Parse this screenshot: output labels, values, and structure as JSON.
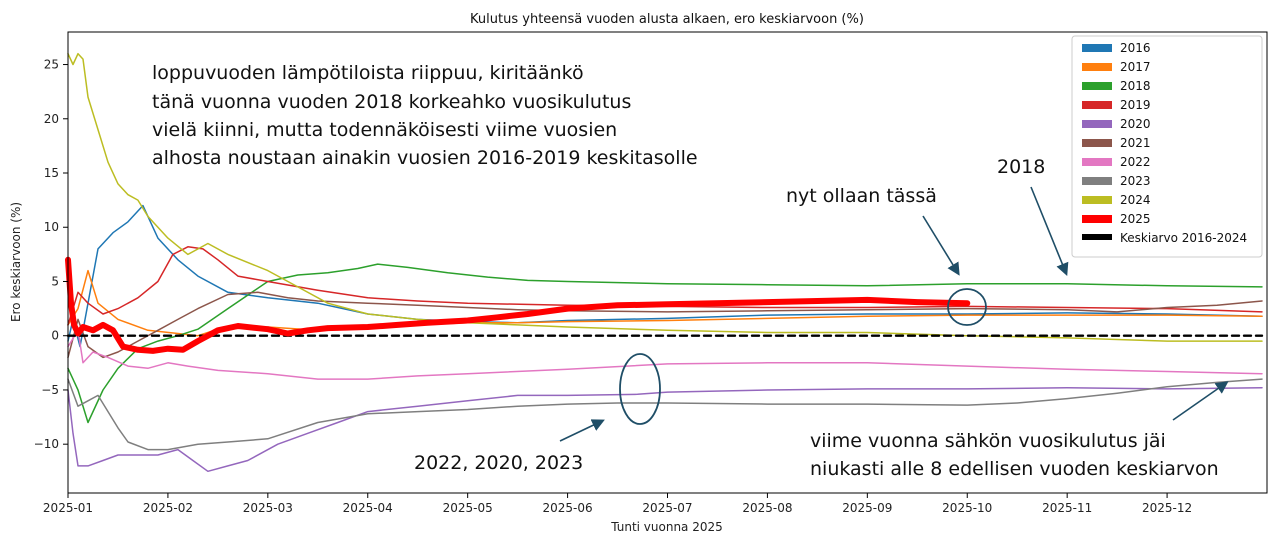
{
  "chart_data": {
    "type": "line",
    "title": "Kulutus yhteensä vuoden alusta alkaen, ero keskiarvoon (%)",
    "xlabel": "Tunti vuonna 2025",
    "ylabel": "Ero keskiarvoon (%)",
    "x_unit": "month (1 = 2025-01, 13 = 2026-01)",
    "xlim": [
      1,
      13
    ],
    "ylim": [
      -14.5,
      28
    ],
    "x_ticks": [
      {
        "v": 1,
        "label": "2025-01"
      },
      {
        "v": 2,
        "label": "2025-02"
      },
      {
        "v": 3,
        "label": "2025-03"
      },
      {
        "v": 4,
        "label": "2025-04"
      },
      {
        "v": 5,
        "label": "2025-05"
      },
      {
        "v": 6,
        "label": "2025-06"
      },
      {
        "v": 7,
        "label": "2025-07"
      },
      {
        "v": 8,
        "label": "2025-08"
      },
      {
        "v": 9,
        "label": "2025-09"
      },
      {
        "v": 10,
        "label": "2025-10"
      },
      {
        "v": 11,
        "label": "2025-11"
      },
      {
        "v": 12,
        "label": "2025-12"
      }
    ],
    "y_ticks": [
      {
        "v": 25,
        "label": "25"
      },
      {
        "v": 20,
        "label": "20"
      },
      {
        "v": 15,
        "label": "15"
      },
      {
        "v": 10,
        "label": "10"
      },
      {
        "v": 5,
        "label": "5"
      },
      {
        "v": 0,
        "label": "0"
      },
      {
        "v": -5,
        "label": "−5"
      },
      {
        "v": -10,
        "label": "−10"
      }
    ],
    "series": [
      {
        "name": "2016",
        "color": "#1f77b4",
        "points": [
          [
            1,
            -0.5
          ],
          [
            1.05,
            1.5
          ],
          [
            1.12,
            -1
          ],
          [
            1.2,
            3
          ],
          [
            1.3,
            8
          ],
          [
            1.45,
            9.5
          ],
          [
            1.6,
            10.5
          ],
          [
            1.75,
            12
          ],
          [
            1.9,
            9
          ],
          [
            2.1,
            7
          ],
          [
            2.3,
            5.5
          ],
          [
            2.6,
            4
          ],
          [
            3,
            3.5
          ],
          [
            3.5,
            3
          ],
          [
            4,
            2
          ],
          [
            4.5,
            1.5
          ],
          [
            5,
            1.3
          ],
          [
            5.5,
            1.2
          ],
          [
            6,
            1.4
          ],
          [
            7,
            1.6
          ],
          [
            8,
            1.9
          ],
          [
            9,
            2
          ],
          [
            10,
            2
          ],
          [
            11,
            2.1
          ],
          [
            12,
            2
          ],
          [
            12.95,
            1.8
          ]
        ]
      },
      {
        "name": "2017",
        "color": "#ff7f0e",
        "points": [
          [
            1,
            1
          ],
          [
            1.1,
            2.5
          ],
          [
            1.2,
            6
          ],
          [
            1.3,
            3
          ],
          [
            1.5,
            1.5
          ],
          [
            1.8,
            0.5
          ],
          [
            2.1,
            0.2
          ],
          [
            2.3,
            0
          ],
          [
            2.5,
            0.6
          ],
          [
            3,
            0.8
          ],
          [
            3.5,
            0.5
          ],
          [
            4,
            0.8
          ],
          [
            4.5,
            1
          ],
          [
            5,
            1.2
          ],
          [
            5.5,
            1.2
          ],
          [
            6,
            1.3
          ],
          [
            7,
            1.4
          ],
          [
            8,
            1.6
          ],
          [
            9,
            1.8
          ],
          [
            10,
            1.9
          ],
          [
            11,
            1.9
          ],
          [
            12,
            1.9
          ],
          [
            12.95,
            1.8
          ]
        ]
      },
      {
        "name": "2018",
        "color": "#2ca02c",
        "points": [
          [
            1,
            -3
          ],
          [
            1.1,
            -5
          ],
          [
            1.2,
            -8
          ],
          [
            1.35,
            -5
          ],
          [
            1.5,
            -3
          ],
          [
            1.7,
            -1.2
          ],
          [
            1.9,
            -0.5
          ],
          [
            2.1,
            0
          ],
          [
            2.3,
            0.6
          ],
          [
            2.6,
            2.5
          ],
          [
            3,
            5
          ],
          [
            3.3,
            5.6
          ],
          [
            3.6,
            5.8
          ],
          [
            3.9,
            6.2
          ],
          [
            4.1,
            6.6
          ],
          [
            4.4,
            6.3
          ],
          [
            4.8,
            5.8
          ],
          [
            5.2,
            5.4
          ],
          [
            5.6,
            5.1
          ],
          [
            6,
            5
          ],
          [
            7,
            4.8
          ],
          [
            8,
            4.7
          ],
          [
            9,
            4.6
          ],
          [
            10,
            4.8
          ],
          [
            11,
            4.8
          ],
          [
            12,
            4.6
          ],
          [
            12.95,
            4.5
          ]
        ]
      },
      {
        "name": "2019",
        "color": "#d62728",
        "points": [
          [
            1,
            1
          ],
          [
            1.1,
            4
          ],
          [
            1.2,
            3
          ],
          [
            1.35,
            2
          ],
          [
            1.5,
            2.5
          ],
          [
            1.7,
            3.5
          ],
          [
            1.9,
            5
          ],
          [
            2.05,
            7.5
          ],
          [
            2.2,
            8.2
          ],
          [
            2.35,
            8
          ],
          [
            2.5,
            7
          ],
          [
            2.7,
            5.5
          ],
          [
            3,
            5
          ],
          [
            3.5,
            4.2
          ],
          [
            4,
            3.5
          ],
          [
            4.5,
            3.2
          ],
          [
            5,
            3
          ],
          [
            6,
            2.8
          ],
          [
            7,
            2.7
          ],
          [
            8,
            2.6
          ],
          [
            9,
            2.6
          ],
          [
            10,
            2.7
          ],
          [
            11,
            2.6
          ],
          [
            12,
            2.5
          ],
          [
            12.95,
            2.2
          ]
        ]
      },
      {
        "name": "2020",
        "color": "#9467bd",
        "points": [
          [
            1,
            -5
          ],
          [
            1.05,
            -9
          ],
          [
            1.1,
            -12
          ],
          [
            1.2,
            -12
          ],
          [
            1.35,
            -11.5
          ],
          [
            1.5,
            -11
          ],
          [
            1.7,
            -11
          ],
          [
            1.9,
            -11
          ],
          [
            2.1,
            -10.5
          ],
          [
            2.25,
            -11.5
          ],
          [
            2.4,
            -12.5
          ],
          [
            2.6,
            -12
          ],
          [
            2.8,
            -11.5
          ],
          [
            3.1,
            -10
          ],
          [
            3.4,
            -9
          ],
          [
            3.7,
            -8
          ],
          [
            4,
            -7
          ],
          [
            4.5,
            -6.5
          ],
          [
            5,
            -6
          ],
          [
            5.5,
            -5.5
          ],
          [
            6,
            -5.5
          ],
          [
            6.7,
            -5.4
          ],
          [
            7,
            -5.2
          ],
          [
            8,
            -5
          ],
          [
            9,
            -4.9
          ],
          [
            10,
            -4.9
          ],
          [
            11,
            -4.8
          ],
          [
            12,
            -4.9
          ],
          [
            12.95,
            -4.8
          ]
        ]
      },
      {
        "name": "2021",
        "color": "#8c564b",
        "points": [
          [
            1,
            -2
          ],
          [
            1.1,
            1.5
          ],
          [
            1.2,
            -1
          ],
          [
            1.35,
            -2
          ],
          [
            1.5,
            -1.5
          ],
          [
            1.7,
            -0.5
          ],
          [
            1.9,
            0.5
          ],
          [
            2.1,
            1.5
          ],
          [
            2.3,
            2.5
          ],
          [
            2.6,
            3.8
          ],
          [
            2.9,
            4
          ],
          [
            3.2,
            3.5
          ],
          [
            3.5,
            3.2
          ],
          [
            4,
            3
          ],
          [
            4.5,
            2.8
          ],
          [
            5,
            2.6
          ],
          [
            5.5,
            2.4
          ],
          [
            6,
            2.3
          ],
          [
            7,
            2.2
          ],
          [
            8,
            2.3
          ],
          [
            9,
            2.4
          ],
          [
            10,
            2.5
          ],
          [
            11,
            2.4
          ],
          [
            11.5,
            2.2
          ],
          [
            12,
            2.6
          ],
          [
            12.5,
            2.8
          ],
          [
            12.95,
            3.2
          ]
        ]
      },
      {
        "name": "2022",
        "color": "#e377c2",
        "points": [
          [
            1,
            -1
          ],
          [
            1.1,
            0.5
          ],
          [
            1.15,
            -2.5
          ],
          [
            1.25,
            -1.5
          ],
          [
            1.4,
            -2
          ],
          [
            1.6,
            -2.8
          ],
          [
            1.8,
            -3
          ],
          [
            2,
            -2.5
          ],
          [
            2.2,
            -2.8
          ],
          [
            2.5,
            -3.2
          ],
          [
            3,
            -3.5
          ],
          [
            3.5,
            -4
          ],
          [
            4,
            -4
          ],
          [
            4.5,
            -3.7
          ],
          [
            5,
            -3.5
          ],
          [
            6,
            -3.1
          ],
          [
            7,
            -2.6
          ],
          [
            8,
            -2.5
          ],
          [
            9,
            -2.5
          ],
          [
            10,
            -2.8
          ],
          [
            11,
            -3.1
          ],
          [
            12,
            -3.3
          ],
          [
            12.95,
            -3.5
          ]
        ]
      },
      {
        "name": "2023",
        "color": "#7f7f7f",
        "points": [
          [
            1,
            -4
          ],
          [
            1.1,
            -6.5
          ],
          [
            1.2,
            -6
          ],
          [
            1.3,
            -5.5
          ],
          [
            1.4,
            -7
          ],
          [
            1.5,
            -8.5
          ],
          [
            1.6,
            -9.8
          ],
          [
            1.8,
            -10.5
          ],
          [
            2,
            -10.5
          ],
          [
            2.3,
            -10
          ],
          [
            2.6,
            -9.8
          ],
          [
            3,
            -9.5
          ],
          [
            3.5,
            -8
          ],
          [
            4,
            -7.2
          ],
          [
            4.5,
            -7
          ],
          [
            5,
            -6.8
          ],
          [
            5.5,
            -6.5
          ],
          [
            6,
            -6.3
          ],
          [
            6.5,
            -6.2
          ],
          [
            7,
            -6.2
          ],
          [
            8,
            -6.3
          ],
          [
            9,
            -6.3
          ],
          [
            10,
            -6.4
          ],
          [
            10.5,
            -6.2
          ],
          [
            11,
            -5.8
          ],
          [
            11.5,
            -5.3
          ],
          [
            12,
            -4.7
          ],
          [
            12.5,
            -4.3
          ],
          [
            12.95,
            -4
          ]
        ]
      },
      {
        "name": "2024",
        "color": "#bcbd22",
        "points": [
          [
            1,
            26
          ],
          [
            1.05,
            25
          ],
          [
            1.1,
            26
          ],
          [
            1.15,
            25.5
          ],
          [
            1.2,
            22
          ],
          [
            1.3,
            19
          ],
          [
            1.4,
            16
          ],
          [
            1.5,
            14
          ],
          [
            1.6,
            13
          ],
          [
            1.7,
            12.5
          ],
          [
            1.8,
            11
          ],
          [
            2,
            9
          ],
          [
            2.2,
            7.5
          ],
          [
            2.4,
            8.5
          ],
          [
            2.6,
            7.5
          ],
          [
            3,
            6
          ],
          [
            3.3,
            4.5
          ],
          [
            3.6,
            3
          ],
          [
            4,
            2
          ],
          [
            4.5,
            1.5
          ],
          [
            5,
            1.2
          ],
          [
            5.5,
            1
          ],
          [
            6,
            0.8
          ],
          [
            7,
            0.5
          ],
          [
            8,
            0.3
          ],
          [
            9,
            0.3
          ],
          [
            10,
            0
          ],
          [
            11,
            -0.2
          ],
          [
            12,
            -0.5
          ],
          [
            12.95,
            -0.5
          ]
        ]
      },
      {
        "name": "2025",
        "color": "#ff0000",
        "points": [
          [
            1,
            7
          ],
          [
            1.03,
            3
          ],
          [
            1.06,
            1
          ],
          [
            1.1,
            0.2
          ],
          [
            1.15,
            0.8
          ],
          [
            1.25,
            0.5
          ],
          [
            1.35,
            1
          ],
          [
            1.45,
            0.5
          ],
          [
            1.55,
            -1
          ],
          [
            1.7,
            -1.3
          ],
          [
            1.85,
            -1.4
          ],
          [
            2,
            -1.2
          ],
          [
            2.15,
            -1.3
          ],
          [
            2.3,
            -0.5
          ],
          [
            2.5,
            0.5
          ],
          [
            2.7,
            0.9
          ],
          [
            3,
            0.6
          ],
          [
            3.2,
            0.2
          ],
          [
            3.4,
            0.5
          ],
          [
            3.6,
            0.7
          ],
          [
            4,
            0.8
          ],
          [
            4.3,
            1
          ],
          [
            4.6,
            1.2
          ],
          [
            5,
            1.4
          ],
          [
            5.3,
            1.7
          ],
          [
            5.6,
            2
          ],
          [
            6,
            2.5
          ],
          [
            6.5,
            2.8
          ],
          [
            7,
            2.9
          ],
          [
            8,
            3.1
          ],
          [
            8.5,
            3.2
          ],
          [
            9,
            3.3
          ],
          [
            9.5,
            3.1
          ],
          [
            10,
            3
          ]
        ]
      },
      {
        "name": "Keskiarvo 2016-2024",
        "color": "#000000",
        "points": [
          [
            1,
            0
          ],
          [
            12.95,
            0
          ]
        ]
      }
    ],
    "annotations": {
      "top_text": [
        "loppuvuoden lämpötiloista riippuu, kiritäänkö",
        "tänä vuonna vuoden 2018 korkeahko vuosikulutus",
        "vielä kiinni, mutta todennäköisesti viime vuosien",
        "alhosta noustaan ainakin vuosien 2016-2019 keskitasolle"
      ],
      "now_label": "nyt ollaan tässä",
      "label_2018": "2018",
      "label_lower_group": "2022, 2020, 2023",
      "bottom_right_text": [
        "viime vuonna sähkön vuosikulutus jäi",
        "niukasti alle 8 edellisen vuoden keskiarvon"
      ]
    },
    "annotation_style": {
      "arrow_color": "#1f4e67"
    },
    "legend_position": "top-right"
  }
}
